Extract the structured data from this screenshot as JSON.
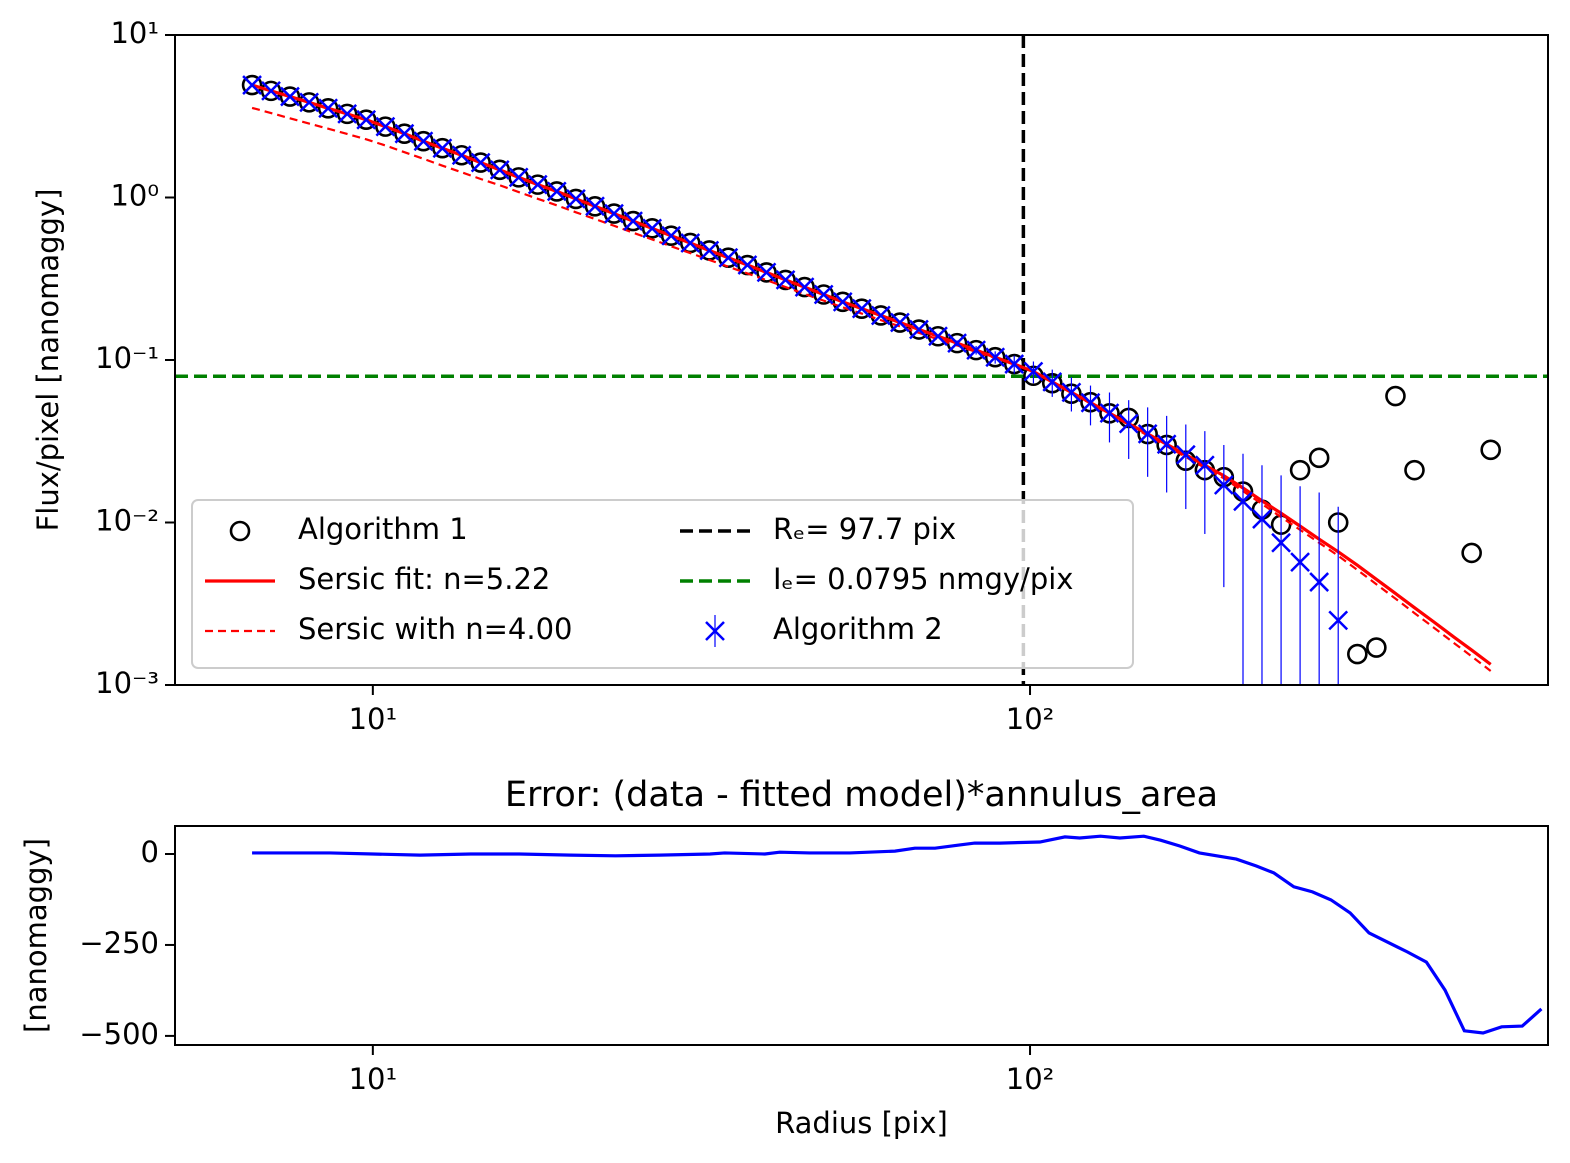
{
  "chart_data": [
    {
      "type": "line",
      "xscale": "log",
      "yscale": "log",
      "xlim": [
        5,
        614
      ],
      "ylim": [
        0.001,
        10
      ],
      "xticks": [
        {
          "value": 10,
          "label": "10¹"
        },
        {
          "value": 100,
          "label": "10²"
        }
      ],
      "yticks": [
        {
          "value": 0.001,
          "label": "10⁻³"
        },
        {
          "value": 0.01,
          "label": "10⁻²"
        },
        {
          "value": 0.1,
          "label": "10⁻¹"
        },
        {
          "value": 1,
          "label": "10⁰"
        },
        {
          "value": 10,
          "label": "10¹"
        }
      ],
      "ylabel": "Flux/pixel [nanomaggy]",
      "x": [
        6.55,
        7.0,
        7.48,
        8.0,
        8.55,
        9.14,
        9.77,
        10.45,
        11.17,
        11.94,
        12.76,
        13.65,
        14.59,
        15.6,
        16.67,
        17.82,
        19.05,
        20.37,
        21.78,
        23.28,
        24.89,
        26.61,
        28.44,
        30.41,
        32.51,
        34.75,
        37.15,
        39.72,
        42.46,
        45.39,
        48.53,
        51.88,
        55.46,
        59.29,
        63.39,
        67.76,
        72.44,
        77.45,
        82.79,
        88.51,
        94.62,
        101.2,
        108.1,
        115.6,
        123.6,
        132.1,
        141.3,
        151.0,
        161.4,
        172.6,
        184.5,
        197.2,
        210.9,
        225.4,
        241.0,
        257.6,
        275.4,
        294.4,
        314.8,
        336.5,
        359.8,
        384.6,
        411.2,
        439.5,
        469.9,
        502.3
      ],
      "series": [
        {
          "name": "Algorithm 1",
          "color": "#000000",
          "marker": "circle",
          "values": [
            4.92,
            4.53,
            4.18,
            3.85,
            3.54,
            3.27,
            3.01,
            2.73,
            2.47,
            2.22,
            2.01,
            1.82,
            1.64,
            1.48,
            1.33,
            1.2,
            1.09,
            0.98,
            0.883,
            0.796,
            0.716,
            0.646,
            0.582,
            0.525,
            0.472,
            0.426,
            0.384,
            0.346,
            0.311,
            0.281,
            0.253,
            0.228,
            0.207,
            0.188,
            0.17,
            0.154,
            0.14,
            0.127,
            0.115,
            0.104,
            0.0944,
            0.08,
            0.072,
            0.062,
            0.055,
            0.047,
            0.044,
            0.035,
            0.03,
            0.024,
            0.021,
            0.019,
            0.0155,
            0.012,
            0.0097,
            0.021,
            0.025,
            0.01,
            0.00155,
            0.0017,
            0.06,
            0.021,
            null,
            null,
            0.0065,
            0.028
          ]
        },
        {
          "name": "Sersic fit: n=5.22",
          "color": "#ff0000",
          "line": "solid",
          "values": [
            4.92,
            4.53,
            4.18,
            3.85,
            3.54,
            3.27,
            3.01,
            2.73,
            2.47,
            2.22,
            2.01,
            1.82,
            1.64,
            1.48,
            1.33,
            1.2,
            1.09,
            0.98,
            0.883,
            0.796,
            0.716,
            0.646,
            0.582,
            0.525,
            0.472,
            0.426,
            0.384,
            0.346,
            0.311,
            0.281,
            0.253,
            0.228,
            0.207,
            0.188,
            0.17,
            0.154,
            0.14,
            0.127,
            0.115,
            0.104,
            0.0944,
            0.0849,
            0.0733,
            0.0632,
            0.0546,
            0.0471,
            0.0406,
            0.0351,
            0.0303,
            0.0261,
            0.0225,
            0.0194,
            0.0163,
            0.0136,
            0.0114,
            0.0095,
            0.0079,
            0.0066,
            0.00546,
            0.00447,
            0.00366,
            0.00299,
            0.00245,
            0.002,
            0.00164,
            0.00134
          ]
        },
        {
          "name": "Sersic with n=4.00",
          "color": "#ff0000",
          "line": "dashed",
          "values": [
            3.56,
            3.31,
            3.07,
            2.85,
            2.65,
            2.46,
            2.28,
            2.09,
            1.9,
            1.73,
            1.57,
            1.43,
            1.3,
            1.19,
            1.08,
            0.982,
            0.895,
            0.811,
            0.737,
            0.67,
            0.607,
            0.552,
            0.501,
            0.455,
            0.413,
            0.375,
            0.341,
            0.31,
            0.281,
            0.255,
            0.232,
            0.211,
            0.193,
            0.176,
            0.161,
            0.147,
            0.134,
            0.123,
            0.112,
            0.103,
            0.0938,
            0.0849,
            0.073,
            0.0628,
            0.054,
            0.0464,
            0.0399,
            0.0343,
            0.0295,
            0.0253,
            0.0217,
            0.0187,
            0.0156,
            0.013,
            0.0108,
            0.00901,
            0.0075,
            0.00624,
            0.00511,
            0.00417,
            0.0034,
            0.00277,
            0.00226,
            0.00184,
            0.0015,
            0.00122
          ]
        },
        {
          "name": "Algorithm 2",
          "color": "#0000ff",
          "marker": "x",
          "values": [
            4.92,
            4.53,
            4.18,
            3.85,
            3.54,
            3.27,
            3.01,
            2.73,
            2.47,
            2.22,
            2.01,
            1.82,
            1.64,
            1.48,
            1.33,
            1.2,
            1.09,
            0.98,
            0.883,
            0.796,
            0.716,
            0.646,
            0.582,
            0.525,
            0.472,
            0.426,
            0.384,
            0.346,
            0.311,
            0.281,
            0.253,
            0.228,
            0.207,
            0.188,
            0.17,
            0.154,
            0.14,
            0.127,
            0.115,
            0.104,
            0.0944,
            0.0849,
            0.0733,
            0.0632,
            0.0546,
            0.0471,
            0.0406,
            0.0351,
            0.0303,
            0.0261,
            0.0225,
            0.017,
            0.0135,
            0.0105,
            0.0075,
            0.0057,
            0.0043,
            0.0025,
            null,
            null,
            null,
            null,
            null,
            null,
            null,
            null
          ],
          "errors": [
            null,
            null,
            null,
            null,
            null,
            null,
            null,
            null,
            null,
            null,
            null,
            null,
            null,
            null,
            null,
            null,
            null,
            null,
            null,
            null,
            null,
            null,
            null,
            null,
            null,
            null,
            null,
            null,
            null,
            null,
            null,
            null,
            null,
            null,
            null,
            null,
            0.003,
            0.005,
            0.007,
            0.009,
            0.012,
            0.013,
            0.014,
            0.015,
            0.015,
            0.016,
            0.016,
            0.016,
            0.015,
            0.014,
            0.014,
            0.013,
            0.013,
            0.012,
            0.012,
            0.011,
            0.011,
            0.01,
            null,
            null,
            null,
            null,
            null,
            null,
            null,
            null
          ]
        }
      ],
      "vline": {
        "x": 97.7,
        "label": "Rₑ= 97.7 pix",
        "color": "#000000"
      },
      "hline": {
        "y": 0.0795,
        "label": "Iₑ= 0.0795 nmgy/pix",
        "color": "#008000"
      },
      "legend": "lower left"
    },
    {
      "type": "line",
      "xscale": "log",
      "title": "Error: (data - fitted model)*annulus_area",
      "xlabel": "Radius [pix]",
      "ylabel": "[nanomaggy]",
      "xlim": [
        5,
        614
      ],
      "ylim": [
        -525,
        77
      ],
      "xticks": [
        {
          "value": 10,
          "label": "10¹"
        },
        {
          "value": 100,
          "label": "10²"
        }
      ],
      "yticks": [
        0,
        {
          "value": -250,
          "label": "−250"
        },
        {
          "value": -500,
          "label": "−500"
        }
      ],
      "x": [
        6.55,
        7.48,
        8.61,
        10,
        11.8,
        14.1,
        16.7,
        20.0,
        23.4,
        27.3,
        32.6,
        34.3,
        39.5,
        41.6,
        46.2,
        53.2,
        62.3,
        66.8,
        71.7,
        78.2,
        82.4,
        90.0,
        103.5,
        113,
        119,
        128,
        137,
        149,
        158,
        169,
        181,
        206,
        221,
        235,
        252,
        269,
        287,
        307,
        328,
        375,
        401,
        428,
        458,
        489,
        522,
        561,
        600
      ],
      "series": [
        {
          "color": "#0000ff",
          "line": "solid",
          "values": [
            3,
            3,
            3,
            0,
            -3,
            0,
            0,
            -3,
            -5,
            -3,
            0,
            3,
            0,
            5,
            3,
            3,
            8,
            16,
            16,
            25,
            30,
            30,
            33,
            47,
            44,
            49,
            44,
            49,
            38,
            22,
            3,
            -14,
            -33,
            -52,
            -90,
            -104,
            -126,
            -162,
            -217,
            -269,
            -297,
            -374,
            -486,
            -492,
            -475,
            -473,
            -426
          ]
        }
      ]
    }
  ]
}
